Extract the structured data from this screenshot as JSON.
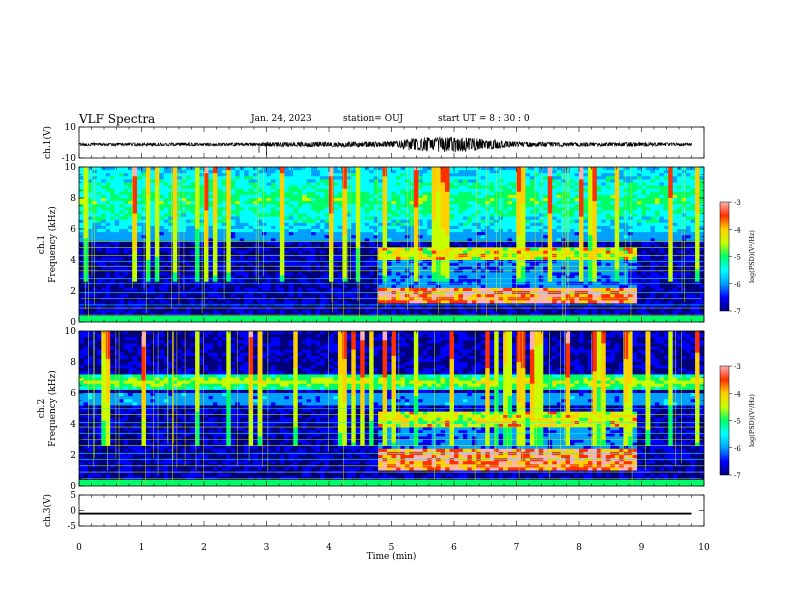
{
  "header": {
    "title": "VLF Spectra",
    "date": "Jan. 24, 2023",
    "station": "station= OUJ",
    "start": "start  UT =   8  : 30 : 0"
  },
  "colors": {
    "spectrum_scale": [
      "#00007a",
      "#0000ff",
      "#00a0ff",
      "#00ffff",
      "#00ff66",
      "#c8ff00",
      "#ffd000",
      "#ff3000",
      "#ffb0b0"
    ],
    "waveform": "#000000",
    "axis": "#000000"
  },
  "chart_data": [
    {
      "id": "waveform-ch1",
      "type": "line",
      "ylabel": "ch.1(V)",
      "ylim": [
        -10,
        10
      ],
      "yticks": [
        10,
        -10
      ],
      "xlim": [
        0,
        10
      ],
      "series": [
        {
          "description_units": "V",
          "envelope_points": [
            {
              "x": 0.0,
              "amp": 0.9
            },
            {
              "x": 2.9,
              "amp": 1.0
            },
            {
              "x": 3.0,
              "amp": 1.4
            },
            {
              "x": 4.8,
              "amp": 1.8
            },
            {
              "x": 5.1,
              "amp": 2.2
            },
            {
              "x": 5.3,
              "amp": 4.0
            },
            {
              "x": 5.6,
              "amp": 4.8
            },
            {
              "x": 5.9,
              "amp": 5.2
            },
            {
              "x": 6.2,
              "amp": 4.5
            },
            {
              "x": 6.6,
              "amp": 3.0
            },
            {
              "x": 7.0,
              "amp": 1.6
            },
            {
              "x": 8.5,
              "amp": 1.2
            },
            {
              "x": 8.8,
              "amp": 1.6
            },
            {
              "x": 9.2,
              "amp": 1.1
            },
            {
              "x": 9.8,
              "amp": 0.9
            }
          ]
        }
      ]
    },
    {
      "id": "spectrogram-ch1",
      "type": "heatmap",
      "ylabel": "ch.1\nFrequency (kHz)",
      "ylim": [
        0,
        10
      ],
      "yticks": [
        0,
        2,
        4,
        6,
        8,
        10
      ],
      "xlim": [
        0,
        10
      ],
      "colorbar": {
        "label": "log(PSD)(V²/Hz)",
        "range": [
          -7,
          -3
        ],
        "ticks": [
          -3,
          -4,
          -5,
          -6,
          -7
        ]
      },
      "features": {
        "background_level": -6.6,
        "upper_band_khz": [
          5.8,
          10.0
        ],
        "upper_band_level": -5.0,
        "emission_start_min": 4.8,
        "emission_end_min": 8.9,
        "emission_bands_khz": [
          [
            1.3,
            2.0
          ],
          [
            4.2,
            4.6
          ]
        ]
      }
    },
    {
      "id": "spectrogram-ch2",
      "type": "heatmap",
      "ylabel": "ch.2\nFrequency (kHz)",
      "ylim": [
        0,
        10
      ],
      "yticks": [
        0,
        2,
        4,
        6,
        8,
        10
      ],
      "xlim": [
        0,
        10
      ],
      "colorbar": {
        "label": "log(PSD)(V²/Hz)",
        "range": [
          -7,
          -3
        ],
        "ticks": [
          -3,
          -4,
          -5,
          -6,
          -7
        ]
      },
      "features": {
        "background_level": -6.6,
        "upper_band_khz": [
          6.2,
          7.2
        ],
        "upper_band_level": -4.6,
        "emission_start_min": 4.8,
        "emission_end_min": 8.9,
        "emission_bands_khz": [
          [
            1.2,
            2.2
          ],
          [
            4.0,
            4.6
          ]
        ]
      }
    },
    {
      "id": "waveform-ch3",
      "type": "line",
      "ylabel": "ch.3(V)",
      "ylim": [
        -5,
        5
      ],
      "yticks": [
        5,
        0,
        -5
      ],
      "xlim": [
        0,
        10
      ],
      "xlabel": "Time (min)",
      "xticks": [
        0,
        1,
        2,
        3,
        4,
        5,
        6,
        7,
        8,
        9,
        10
      ],
      "series": [
        {
          "description_units": "V",
          "constant_level": -1.0,
          "thickness_v": 0.6
        }
      ]
    }
  ]
}
